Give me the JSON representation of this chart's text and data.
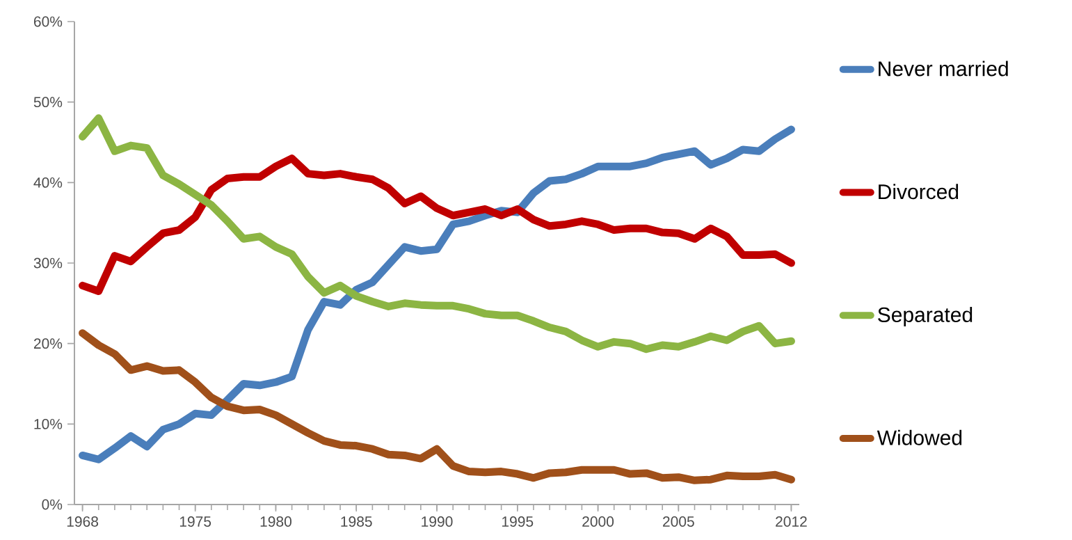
{
  "chart_data": {
    "type": "line",
    "x": [
      1968,
      1969,
      1970,
      1971,
      1972,
      1973,
      1974,
      1975,
      1976,
      1977,
      1978,
      1979,
      1980,
      1981,
      1982,
      1983,
      1984,
      1985,
      1986,
      1987,
      1988,
      1989,
      1990,
      1991,
      1992,
      1993,
      1994,
      1995,
      1996,
      1997,
      1998,
      1999,
      2000,
      2001,
      2002,
      2003,
      2004,
      2005,
      2006,
      2007,
      2008,
      2009,
      2010,
      2011,
      2012
    ],
    "series": [
      {
        "name": "Never married",
        "color": "#4a7ebb",
        "values": [
          6.1,
          5.6,
          7.0,
          8.5,
          7.2,
          9.3,
          10.0,
          11.3,
          11.1,
          13.0,
          15.0,
          14.8,
          15.2,
          15.9,
          21.7,
          25.2,
          24.8,
          26.7,
          27.6,
          29.8,
          32.0,
          31.5,
          31.7,
          34.8,
          35.2,
          35.9,
          36.5,
          36.3,
          38.7,
          40.2,
          40.4,
          41.1,
          42.0,
          42.0,
          42.0,
          42.4,
          43.1,
          43.5,
          43.9,
          42.2,
          43.0,
          44.1,
          43.9,
          45.4,
          46.6
        ]
      },
      {
        "name": "Divorced",
        "color": "#c00000",
        "values": [
          27.2,
          26.5,
          30.9,
          30.2,
          32.0,
          33.7,
          34.1,
          35.7,
          39.1,
          40.5,
          40.7,
          40.7,
          42.0,
          43.0,
          41.1,
          40.9,
          41.1,
          40.7,
          40.4,
          39.3,
          37.4,
          38.3,
          36.8,
          35.9,
          36.3,
          36.7,
          35.9,
          36.7,
          35.4,
          34.6,
          34.8,
          35.2,
          34.8,
          34.1,
          34.3,
          34.3,
          33.8,
          33.7,
          33.0,
          34.3,
          33.3,
          31.0,
          31.0,
          31.1,
          30.0
        ]
      },
      {
        "name": "Separated",
        "color": "#8cb543",
        "values": [
          45.7,
          48.0,
          43.9,
          44.6,
          44.3,
          40.9,
          39.8,
          38.5,
          37.2,
          35.2,
          33.0,
          33.3,
          32.0,
          31.1,
          28.3,
          26.3,
          27.2,
          25.9,
          25.2,
          24.6,
          25.0,
          24.8,
          24.7,
          24.7,
          24.3,
          23.7,
          23.5,
          23.5,
          22.8,
          22.0,
          21.5,
          20.4,
          19.6,
          20.2,
          20.0,
          19.3,
          19.8,
          19.6,
          20.2,
          20.9,
          20.4,
          21.5,
          22.2,
          20.0,
          20.3
        ]
      },
      {
        "name": "Widowed",
        "color": "#a0501a",
        "values": [
          21.3,
          19.8,
          18.7,
          16.7,
          17.2,
          16.6,
          16.7,
          15.2,
          13.3,
          12.2,
          11.7,
          11.8,
          11.1,
          10.0,
          8.9,
          7.9,
          7.4,
          7.3,
          6.9,
          6.2,
          6.1,
          5.7,
          6.9,
          4.8,
          4.1,
          4.0,
          4.1,
          3.8,
          3.3,
          3.9,
          4.0,
          4.3,
          4.3,
          4.3,
          3.8,
          3.9,
          3.3,
          3.4,
          3.0,
          3.1,
          3.6,
          3.5,
          3.5,
          3.7,
          3.1
        ]
      }
    ],
    "xlim": [
      1967.5,
      2012.5
    ],
    "xticks": [
      1968,
      1975,
      1980,
      1985,
      1990,
      1995,
      2000,
      2005,
      2012
    ],
    "ylim": [
      0,
      60
    ],
    "yticks": [
      {
        "value": 0,
        "label": "0%"
      },
      {
        "value": 10,
        "label": "10%"
      },
      {
        "value": 20,
        "label": "20%"
      },
      {
        "value": 30,
        "label": "30%"
      },
      {
        "value": 40,
        "label": "40%"
      },
      {
        "value": 50,
        "label": "50%"
      },
      {
        "value": 60,
        "label": "60%"
      }
    ],
    "grid": false,
    "legend": "right",
    "marker": "none",
    "line_style": "solid"
  }
}
